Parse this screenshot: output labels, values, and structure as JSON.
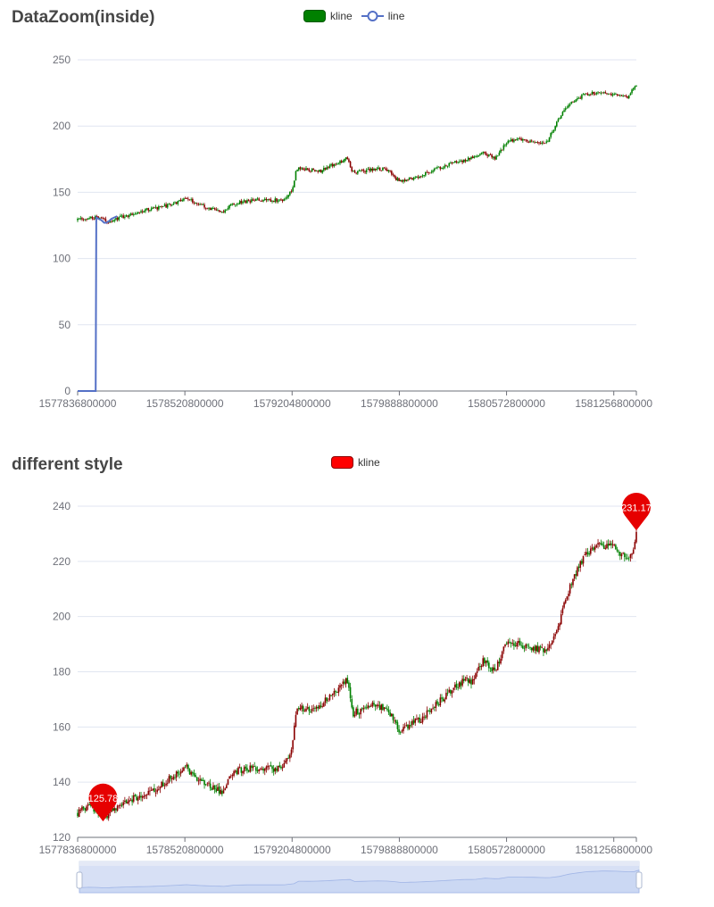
{
  "chart_data": [
    {
      "type": "candlestick",
      "title": "DataZoom(inside)",
      "legend": [
        {
          "name": "kline",
          "color": "#008000",
          "border": "#005a00",
          "icon": "roundRect"
        },
        {
          "name": "line",
          "color": "#5470c6",
          "icon": "circle-line"
        }
      ],
      "x_tick_labels": [
        "1577836800000",
        "1578520800000",
        "1579204800000",
        "1579888800000",
        "1580572800000",
        "1581256800000"
      ],
      "x_range": [
        "1577836800000",
        "1581400800000"
      ],
      "y_ticks": [
        0,
        50,
        100,
        150,
        200,
        250
      ],
      "ylim": [
        0,
        250
      ],
      "up_color": "#008000",
      "down_color": "#8a0000",
      "line_series": {
        "name": "line",
        "color": "#5470c6",
        "points": [
          [
            "1577836800000",
            0
          ],
          [
            "1577923200000",
            0
          ],
          [
            "1577952000000",
            0
          ],
          [
            "1577955600000",
            131
          ],
          [
            "1577970000000",
            130
          ],
          [
            "1577988000000",
            129
          ],
          [
            "1578006000000",
            127
          ],
          [
            "1578020400000",
            127
          ],
          [
            "1578034800000",
            128
          ],
          [
            "1578052800000",
            130
          ],
          [
            "1578070800000",
            131
          ],
          [
            "1578088800000",
            132
          ]
        ]
      },
      "trend_points": [
        [
          "1577836800000",
          129
        ],
        [
          "1577955600000",
          131
        ],
        [
          "1578034800000",
          128
        ],
        [
          "1578182400000",
          134
        ],
        [
          "1578445200000",
          141
        ],
        [
          "1578520800000",
          146
        ],
        [
          "1578664800000",
          138
        ],
        [
          "1578762000000",
          135
        ],
        [
          "1578812400000",
          141
        ],
        [
          "1578970800000",
          144
        ],
        [
          "1579140000000",
          144
        ],
        [
          "1579204800000",
          151
        ],
        [
          "1579233600000",
          168
        ],
        [
          "1579384800000",
          166
        ],
        [
          "1579557600000",
          176
        ],
        [
          "1579589280000",
          165
        ],
        [
          "1579720000000",
          167
        ],
        [
          "1579805000000",
          168
        ],
        [
          "1579888800000",
          158
        ],
        [
          "1580029200000",
          163
        ],
        [
          "1580200000000",
          171
        ],
        [
          "1580330000000",
          175
        ],
        [
          "1580420000000",
          180
        ],
        [
          "1580500000000",
          176
        ],
        [
          "1580572800000",
          188
        ],
        [
          "1580655000000",
          190
        ],
        [
          "1580730000000",
          188
        ],
        [
          "1580830000000",
          188
        ],
        [
          "1580918400000",
          208
        ],
        [
          "1580990000000",
          218
        ],
        [
          "1581072000000",
          224
        ],
        [
          "1581170000000",
          226
        ],
        [
          "1581256800000",
          224
        ],
        [
          "1581344000000",
          222
        ],
        [
          "1581400800000",
          231
        ]
      ]
    },
    {
      "type": "candlestick",
      "title": "different style",
      "legend": [
        {
          "name": "kline",
          "color": "#ff0000",
          "border": "#8a0000",
          "icon": "roundRect"
        }
      ],
      "x_tick_labels": [
        "1577836800000",
        "1578520800000",
        "1579204800000",
        "1579888800000",
        "1580572800000",
        "1581256800000"
      ],
      "x_range": [
        "1577836800000",
        "1581400800000"
      ],
      "y_ticks": [
        120,
        140,
        160,
        180,
        200,
        220,
        240
      ],
      "ylim": [
        120,
        240
      ],
      "up_color": "#8a0000",
      "down_color": "#008000",
      "mark_points": [
        {
          "x": "1577998800000",
          "y": 125.78,
          "label": "125.78",
          "kind": "min"
        },
        {
          "x": "1581400800000",
          "y": 231.17,
          "label": "231.17",
          "kind": "max"
        }
      ],
      "datazoom": {
        "type": "slider",
        "start": 0,
        "end": 100,
        "color": "#d7e0f5"
      },
      "trend_points": [
        [
          "1577836800000",
          129
        ],
        [
          "1577900000000",
          131
        ],
        [
          "1577955600000",
          130
        ],
        [
          "1577998800000",
          127
        ],
        [
          "1578060000000",
          130
        ],
        [
          "1578182400000",
          134
        ],
        [
          "1578300000000",
          136
        ],
        [
          "1578445200000",
          142
        ],
        [
          "1578520800000",
          146
        ],
        [
          "1578600000000",
          141
        ],
        [
          "1578664800000",
          139
        ],
        [
          "1578762000000",
          136
        ],
        [
          "1578812400000",
          143
        ],
        [
          "1578900000000",
          145
        ],
        [
          "1578970800000",
          145
        ],
        [
          "1579140000000",
          145
        ],
        [
          "1579204800000",
          152
        ],
        [
          "1579233600000",
          167
        ],
        [
          "1579300000000",
          166
        ],
        [
          "1579384800000",
          168
        ],
        [
          "1579470000000",
          172
        ],
        [
          "1579557600000",
          177
        ],
        [
          "1579589280000",
          165
        ],
        [
          "1579650000000",
          166
        ],
        [
          "1579720000000",
          168
        ],
        [
          "1579805000000",
          167
        ],
        [
          "1579888800000",
          159
        ],
        [
          "1579960000000",
          161
        ],
        [
          "1580029200000",
          163
        ],
        [
          "1580120000000",
          168
        ],
        [
          "1580200000000",
          172
        ],
        [
          "1580300000000",
          177
        ],
        [
          "1580350000000",
          176
        ],
        [
          "1580420000000",
          184
        ],
        [
          "1580500000000",
          180
        ],
        [
          "1580572800000",
          191
        ],
        [
          "1580655000000",
          190
        ],
        [
          "1580730000000",
          189
        ],
        [
          "1580830000000",
          187
        ],
        [
          "1580900000000",
          195
        ],
        [
          "1580950000000",
          207
        ],
        [
          "1581010000000",
          215
        ],
        [
          "1581072000000",
          222
        ],
        [
          "1581170000000",
          226
        ],
        [
          "1581256800000",
          225
        ],
        [
          "1581330000000",
          221
        ],
        [
          "1581380000000",
          223
        ],
        [
          "1581400800000",
          231
        ]
      ]
    }
  ]
}
